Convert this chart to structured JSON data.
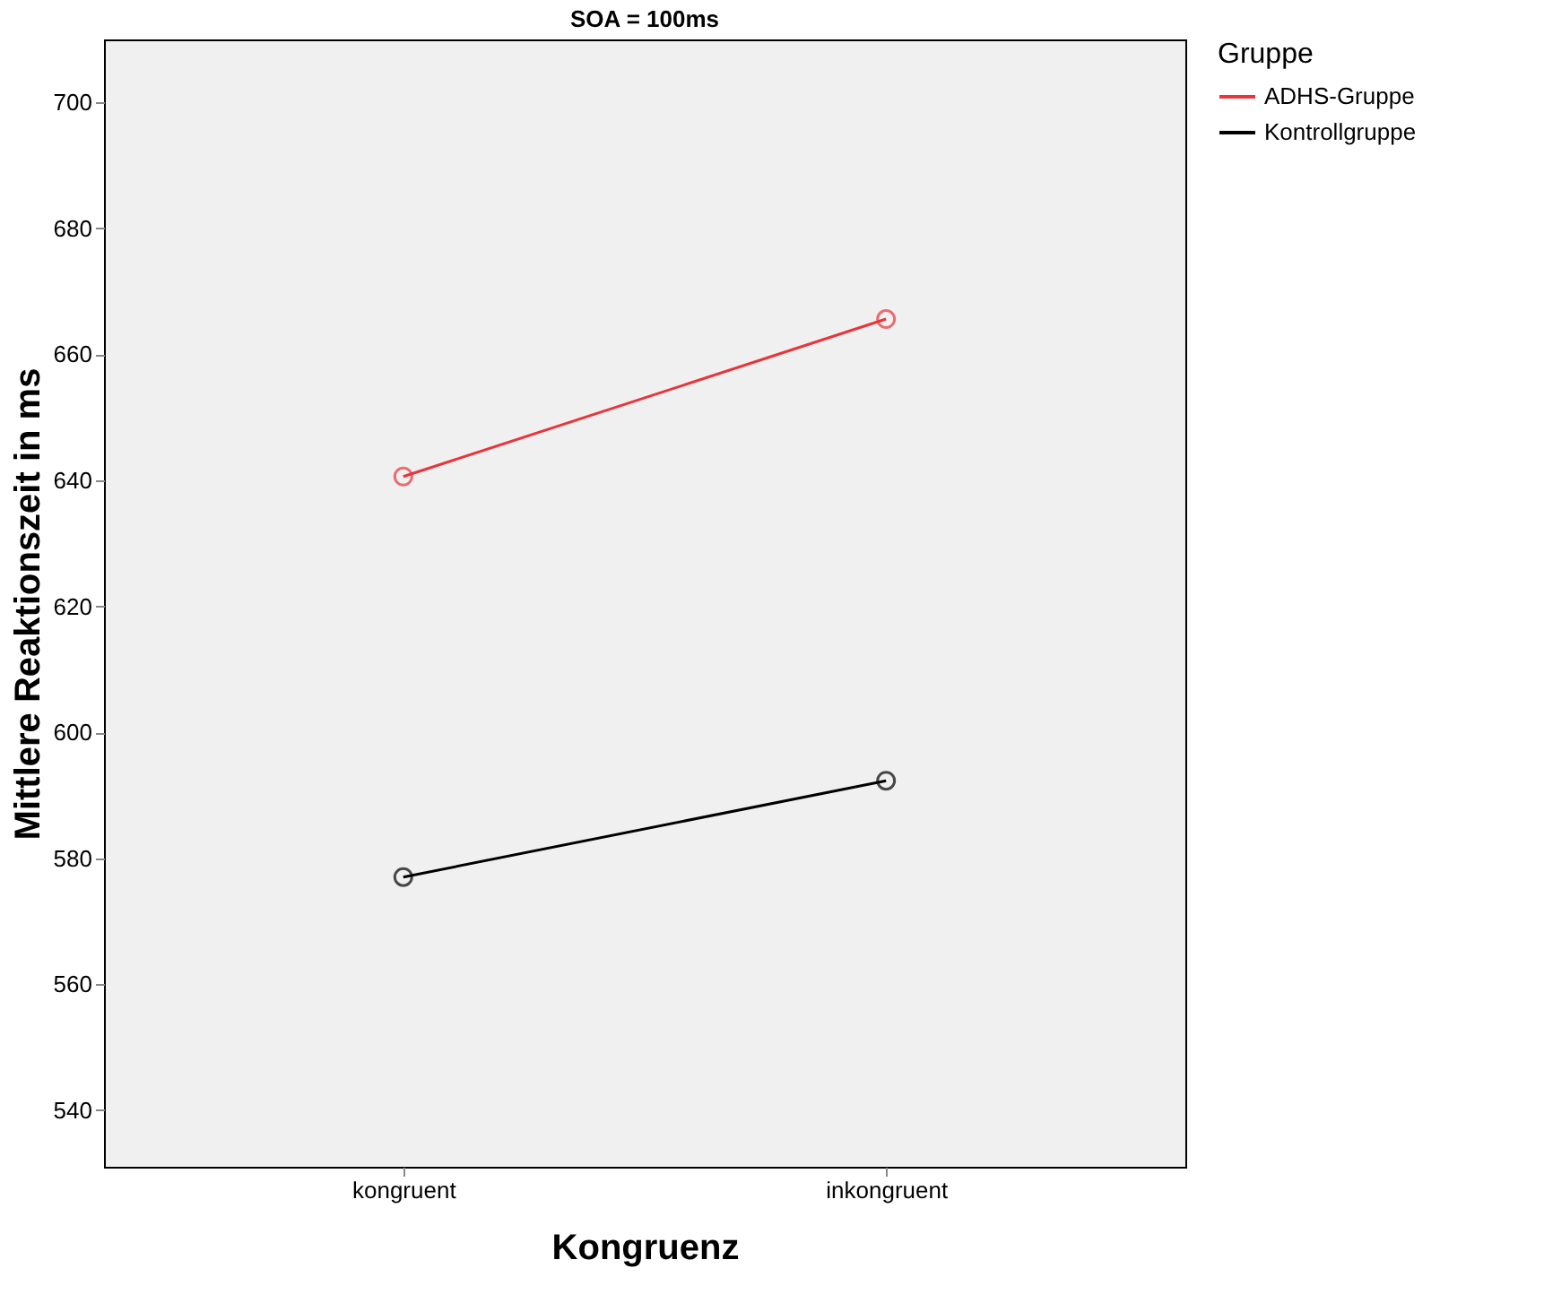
{
  "chart_data": {
    "type": "line",
    "title": "SOA = 100ms",
    "xlabel": "Kongruenz",
    "ylabel": "Mittlere Reaktionszeit in ms",
    "legend_title": "Gruppe",
    "categories": [
      "kongruent",
      "inkongruent"
    ],
    "series": [
      {
        "name": "ADHS-Gruppe",
        "color": "#e8353b",
        "values": [
          640.6,
          665.6
        ]
      },
      {
        "name": "Kontrollgruppe",
        "color": "#000000",
        "values": [
          577,
          592.3
        ]
      }
    ],
    "ylim": [
      531,
      710
    ],
    "yticks": [
      540,
      560,
      580,
      600,
      620,
      640,
      660,
      680,
      700
    ],
    "grid": false,
    "legend": "right",
    "marker": "circle",
    "line_style": "solid"
  }
}
